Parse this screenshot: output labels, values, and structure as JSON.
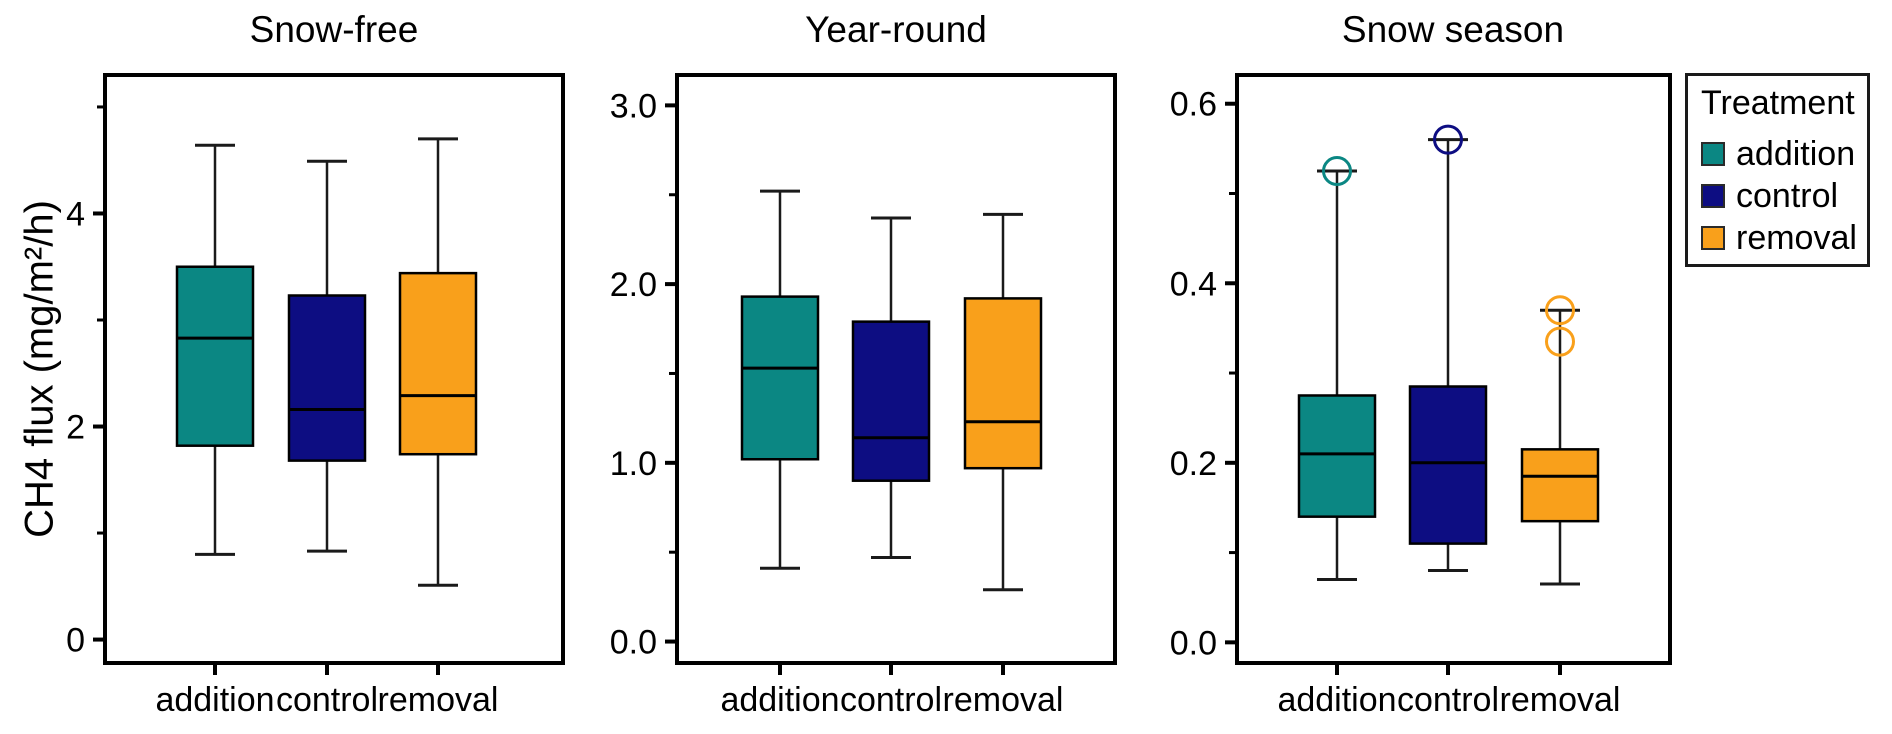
{
  "figure": {
    "y_axis_title": "CH4 flux (mg/m²/h)"
  },
  "colors": {
    "addition": "#0B8783",
    "control": "#0D0D82",
    "removal": "#F9A01B",
    "axis": "#000000",
    "whisker": "#1a1a1a"
  },
  "legend": {
    "title": "Treatment",
    "items": [
      {
        "label": "addition",
        "color": "#0B8783"
      },
      {
        "label": "control",
        "color": "#0D0D82"
      },
      {
        "label": "removal",
        "color": "#F9A01B"
      }
    ]
  },
  "chart_data": [
    {
      "type": "box",
      "title": "Snow-free",
      "ylabel": "CH4 flux (mg/m²/h)",
      "ylim": [
        -0.22,
        5.3
      ],
      "major_ticks": [
        0,
        2,
        4
      ],
      "major_tick_labels": [
        "0",
        "2",
        "4"
      ],
      "minor_ticks": [
        1,
        3,
        5
      ],
      "categories": [
        "addition",
        "control",
        "removal"
      ],
      "boxes": [
        {
          "treatment": "addition",
          "whisker_low": 0.8,
          "q1": 1.82,
          "median": 2.83,
          "q3": 3.5,
          "whisker_high": 4.64,
          "outliers": []
        },
        {
          "treatment": "control",
          "whisker_low": 0.83,
          "q1": 1.68,
          "median": 2.16,
          "q3": 3.23,
          "whisker_high": 4.49,
          "outliers": []
        },
        {
          "treatment": "removal",
          "whisker_low": 0.51,
          "q1": 1.74,
          "median": 2.29,
          "q3": 3.44,
          "whisker_high": 4.7,
          "outliers": []
        }
      ]
    },
    {
      "type": "box",
      "title": "Year-round",
      "ylim": [
        -0.12,
        3.17
      ],
      "major_ticks": [
        0,
        1,
        2,
        3
      ],
      "major_tick_labels": [
        "0.0",
        "1.0",
        "2.0",
        "3.0"
      ],
      "minor_ticks": [
        0.5,
        1.5,
        2.5
      ],
      "categories": [
        "addition",
        "control",
        "removal"
      ],
      "boxes": [
        {
          "treatment": "addition",
          "whisker_low": 0.41,
          "q1": 1.02,
          "median": 1.53,
          "q3": 1.93,
          "whisker_high": 2.52,
          "outliers": []
        },
        {
          "treatment": "control",
          "whisker_low": 0.47,
          "q1": 0.9,
          "median": 1.14,
          "q3": 1.79,
          "whisker_high": 2.37,
          "outliers": []
        },
        {
          "treatment": "removal",
          "whisker_low": 0.29,
          "q1": 0.97,
          "median": 1.23,
          "q3": 1.92,
          "whisker_high": 2.39,
          "outliers": []
        }
      ]
    },
    {
      "type": "box",
      "title": "Snow season",
      "ylim": [
        -0.023,
        0.632
      ],
      "major_ticks": [
        0,
        0.2,
        0.4,
        0.6
      ],
      "major_tick_labels": [
        "0.0",
        "0.2",
        "0.4",
        "0.6"
      ],
      "minor_ticks": [
        0.1,
        0.3,
        0.5
      ],
      "categories": [
        "addition",
        "control",
        "removal"
      ],
      "boxes": [
        {
          "treatment": "addition",
          "whisker_low": 0.07,
          "q1": 0.14,
          "median": 0.21,
          "q3": 0.275,
          "whisker_high": 0.525,
          "outliers": [
            0.525
          ]
        },
        {
          "treatment": "control",
          "whisker_low": 0.08,
          "q1": 0.11,
          "median": 0.2,
          "q3": 0.285,
          "whisker_high": 0.56,
          "outliers": [
            0.56
          ]
        },
        {
          "treatment": "removal",
          "whisker_low": 0.065,
          "q1": 0.135,
          "median": 0.185,
          "q3": 0.215,
          "whisker_high": 0.37,
          "outliers": [
            0.37,
            0.335
          ]
        }
      ]
    }
  ]
}
